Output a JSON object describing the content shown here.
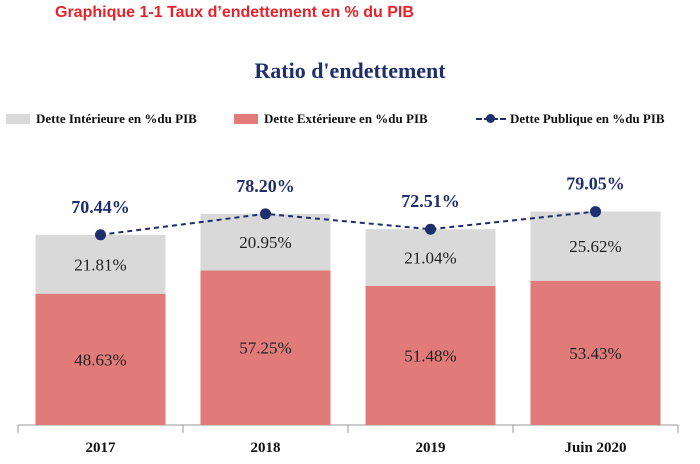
{
  "caption": "Graphique 1-1 Taux d’endettement en % du PIB",
  "chart_data": {
    "type": "bar",
    "stacked": true,
    "title": "Ratio d'endettement",
    "categories": [
      "2017",
      "2018",
      "2019",
      "Juin 2020"
    ],
    "series": [
      {
        "name": "Dette Extérieure en %du PIB",
        "type": "bar",
        "color": "#e07b7a",
        "values": [
          48.63,
          57.25,
          51.48,
          53.43
        ],
        "labels": [
          "48.63%",
          "57.25%",
          "51.48%",
          "53.43%"
        ]
      },
      {
        "name": "Dette Intérieure en %du PIB",
        "type": "bar",
        "color": "#d9d9d9",
        "values": [
          21.81,
          20.95,
          21.04,
          25.62
        ],
        "labels": [
          "21.81%",
          "20.95%",
          "21.04%",
          "25.62%"
        ]
      },
      {
        "name": "Dette Publique en %du PIB",
        "type": "line",
        "color": "#1f2f6e",
        "values": [
          70.44,
          78.2,
          72.51,
          79.05
        ],
        "labels": [
          "70.44%",
          "78.20%",
          "72.51%",
          "79.05%"
        ]
      }
    ],
    "legend": [
      "Dette Intérieure en %du PIB",
      "Dette Extérieure en %du PIB",
      "Dette Publique en %du PIB"
    ],
    "legend_position": "top",
    "ylim": [
      0,
      100
    ],
    "grid": false
  }
}
